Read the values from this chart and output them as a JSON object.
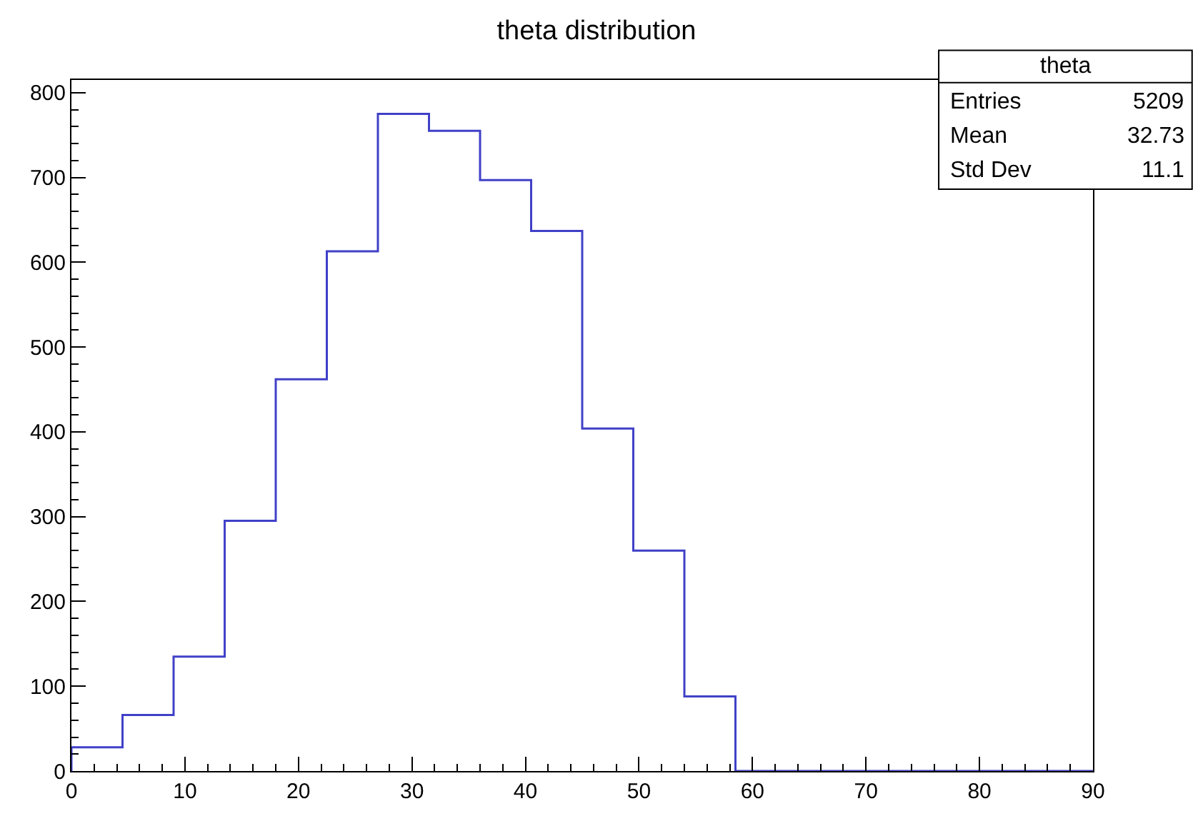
{
  "chart_data": {
    "type": "histogram",
    "title": "theta distribution",
    "bins": [
      0,
      4.5,
      9,
      13.5,
      18,
      22.5,
      27,
      31.5,
      36,
      40.5,
      45,
      49.5,
      54,
      58.5,
      63,
      67.5,
      72,
      76.5,
      81,
      85.5,
      90
    ],
    "values": [
      28,
      66,
      135,
      295,
      462,
      613,
      775,
      755,
      697,
      637,
      404,
      260,
      88,
      0,
      0,
      0,
      0,
      0,
      0,
      0
    ],
    "color": "#4040c8",
    "xlim": [
      0,
      90
    ],
    "xticks": [
      0,
      10,
      20,
      30,
      40,
      50,
      60,
      70,
      80,
      90
    ],
    "ylim": [
      0,
      815
    ],
    "yticks": [
      0,
      100,
      200,
      300,
      400,
      500,
      600,
      700,
      800
    ],
    "annotations": [
      "theta",
      "Entries",
      "5209",
      "Mean",
      "32.73",
      "Std Dev",
      "11.1"
    ]
  }
}
